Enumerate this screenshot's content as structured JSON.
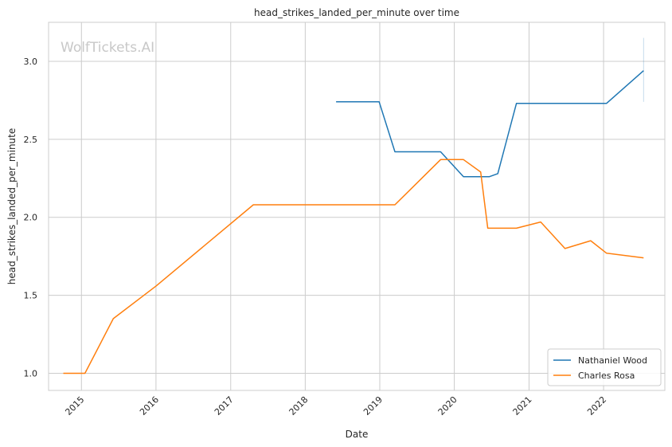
{
  "watermark": "WolfTickets.AI",
  "chart_data": {
    "type": "line",
    "title": "head_strikes_landed_per_minute over time",
    "xlabel": "Date",
    "ylabel": "head_strikes_landed_per_minute",
    "x_ticks": [
      "2015",
      "2016",
      "2017",
      "2018",
      "2019",
      "2020",
      "2021",
      "2022"
    ],
    "y_ticks": [
      "1.0",
      "1.5",
      "2.0",
      "2.5",
      "3.0"
    ],
    "xlim": [
      "2014-07-24",
      "2022-10-28"
    ],
    "ylim": [
      0.89,
      3.25
    ],
    "grid": true,
    "legend_position": "lower-right",
    "series": [
      {
        "name": "Nathaniel Wood",
        "color": "#1f77b4",
        "points": [
          [
            "2018-06-01",
            2.74
          ],
          [
            "2018-12-29",
            2.74
          ],
          [
            "2019-03-16",
            2.42
          ],
          [
            "2019-10-26",
            2.42
          ],
          [
            "2020-02-15",
            2.26
          ],
          [
            "2020-06-20",
            2.26
          ],
          [
            "2020-08-01",
            2.28
          ],
          [
            "2020-10-31",
            2.73
          ],
          [
            "2022-01-15",
            2.73
          ],
          [
            "2022-07-16",
            2.94
          ]
        ],
        "error_bar": {
          "x": "2022-07-16",
          "low": 2.74,
          "high": 3.15
        }
      },
      {
        "name": "Charles Rosa",
        "color": "#ff7f0e",
        "points": [
          [
            "2014-10-04",
            1.0
          ],
          [
            "2015-01-18",
            1.0
          ],
          [
            "2015-06-06",
            1.35
          ],
          [
            "2016-01-02",
            1.56
          ],
          [
            "2017-04-22",
            2.08
          ],
          [
            "2019-03-16",
            2.08
          ],
          [
            "2019-10-26",
            2.37
          ],
          [
            "2020-02-15",
            2.37
          ],
          [
            "2020-05-09",
            2.29
          ],
          [
            "2020-06-13",
            1.93
          ],
          [
            "2020-10-31",
            1.93
          ],
          [
            "2021-02-27",
            1.97
          ],
          [
            "2021-06-26",
            1.8
          ],
          [
            "2021-10-30",
            1.85
          ],
          [
            "2022-01-15",
            1.77
          ],
          [
            "2022-07-16",
            1.74
          ]
        ]
      }
    ]
  }
}
